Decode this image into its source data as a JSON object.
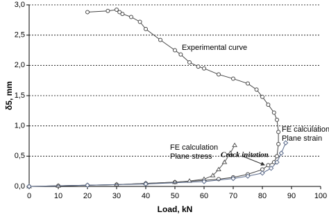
{
  "chart_data": {
    "type": "line",
    "xlabel": "Load, kN",
    "ylabel": "δ5, mm",
    "xlim": [
      0,
      100
    ],
    "xticks": [
      0,
      10,
      20,
      30,
      40,
      50,
      60,
      70,
      80,
      90,
      100
    ],
    "ylim": [
      0,
      3
    ],
    "yticks": [
      {
        "value": 0,
        "label": "0,0"
      },
      {
        "value": 0.5,
        "label": "0,5"
      },
      {
        "value": 1,
        "label": "1,0"
      },
      {
        "value": 1.5,
        "label": "1,5"
      },
      {
        "value": 2,
        "label": "2,0"
      },
      {
        "value": 2.5,
        "label": "2,5"
      },
      {
        "value": 3,
        "label": "3,0"
      }
    ],
    "grid": true,
    "series": [
      {
        "marker": "circle",
        "color": "#444444",
        "x": [
          20,
          27,
          30,
          31,
          32,
          35,
          38,
          40,
          45,
          50,
          52,
          55,
          58,
          60,
          65,
          70,
          75,
          78,
          80,
          82,
          84,
          85,
          85.5,
          85.5,
          85,
          84,
          82,
          80,
          75,
          70,
          65,
          60,
          50,
          40,
          30,
          20,
          10,
          0
        ],
        "values": [
          2.88,
          2.9,
          2.92,
          2.88,
          2.85,
          2.8,
          2.72,
          2.6,
          2.42,
          2.25,
          2.18,
          2.05,
          1.98,
          1.95,
          1.85,
          1.78,
          1.7,
          1.6,
          1.48,
          1.35,
          1.22,
          1.1,
          0.9,
          0.7,
          0.5,
          0.4,
          0.35,
          0.28,
          0.2,
          0.15,
          0.12,
          0.1,
          0.07,
          0.05,
          0.03,
          0.02,
          0.01,
          0
        ]
      },
      {
        "marker": "triangle",
        "color": "#555555",
        "x": [
          0,
          10,
          20,
          30,
          40,
          50,
          55,
          60,
          63,
          65,
          67,
          69,
          70.5
        ],
        "values": [
          0,
          0.01,
          0.02,
          0.03,
          0.05,
          0.07,
          0.09,
          0.12,
          0.18,
          0.28,
          0.4,
          0.55,
          0.68
        ]
      },
      {
        "marker": "diamond",
        "color": "#5a6a8a",
        "x": [
          0,
          20,
          40,
          60,
          70,
          75,
          80,
          83,
          85,
          86.5,
          88
        ],
        "values": [
          0,
          0.02,
          0.04,
          0.08,
          0.13,
          0.17,
          0.22,
          0.3,
          0.4,
          0.55,
          0.72
        ]
      }
    ],
    "annotations": [
      "Experimental curve",
      "FE calculation",
      "Plane stress",
      "FE calculation",
      "Plane strain",
      "Crack initation"
    ]
  }
}
